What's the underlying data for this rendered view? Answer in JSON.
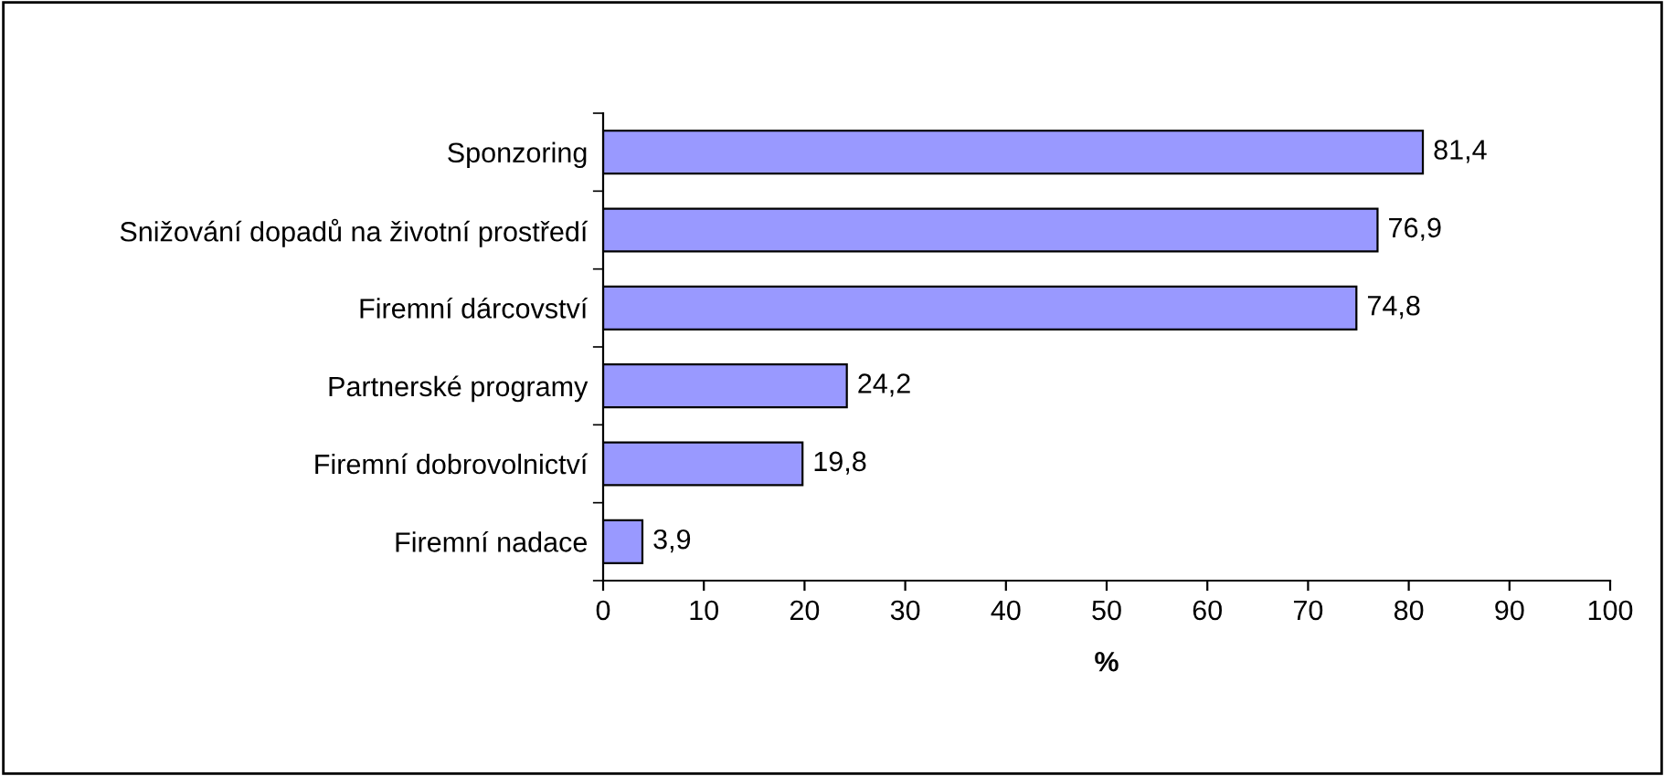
{
  "chart_data": {
    "type": "bar",
    "orientation": "horizontal",
    "xlabel": "%",
    "categories": [
      "Sponzoring",
      "Snižování dopadů na životní prostředí",
      "Firemní dárcovství",
      "Partnerské programy",
      "Firemní dobrovolnictví",
      "Firemní nadace"
    ],
    "values": [
      81.4,
      76.9,
      74.8,
      24.2,
      19.8,
      3.9
    ],
    "value_labels": [
      "81,4",
      "76,9",
      "74,8",
      "24,2",
      "19,8",
      "3,9"
    ],
    "color": "#9999ff",
    "xlim": [
      0,
      100
    ],
    "xticks": [
      0,
      10,
      20,
      30,
      40,
      50,
      60,
      70,
      80,
      90,
      100
    ],
    "grid": false
  }
}
